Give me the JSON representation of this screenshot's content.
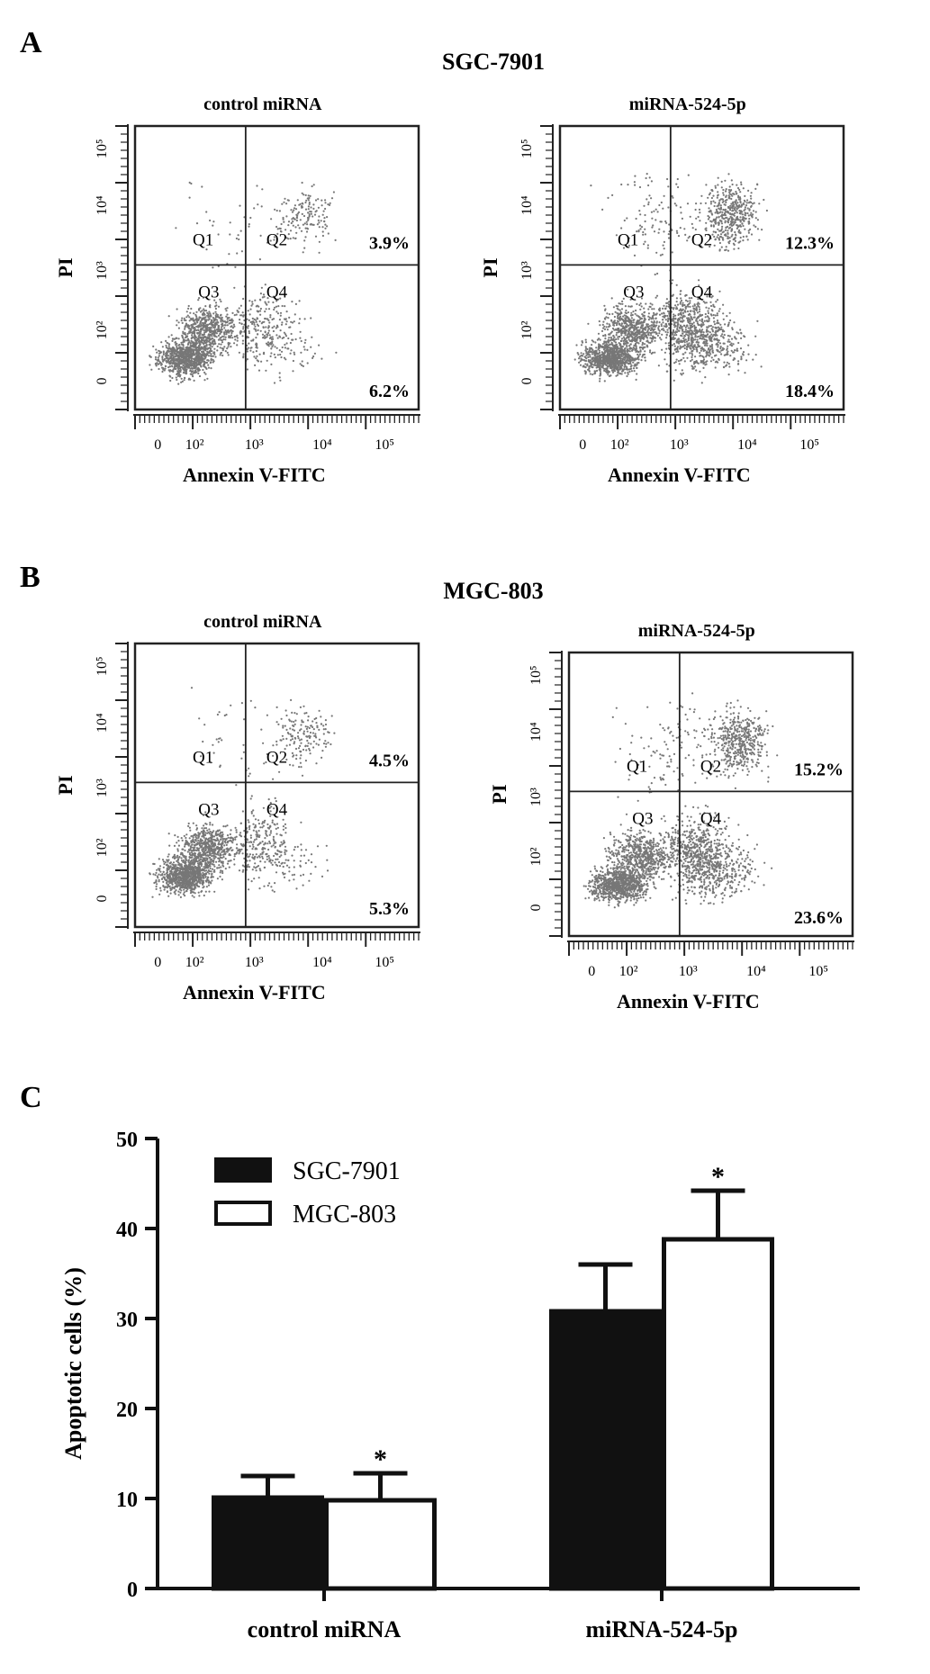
{
  "panels": [
    {
      "letter": "A",
      "cell_line": "SGC-7901",
      "plots": [
        {
          "title": "control miRNA",
          "quadrants": [
            "Q1",
            "Q2",
            "Q3",
            "Q4"
          ],
          "q2_percent": "3.9%",
          "q4_percent": "6.2%"
        },
        {
          "title": "miRNA-524-5p",
          "quadrants": [
            "Q1",
            "Q2",
            "Q3",
            "Q4"
          ],
          "q2_percent": "12.3%",
          "q4_percent": "18.4%"
        }
      ]
    },
    {
      "letter": "B",
      "cell_line": "MGC-803",
      "plots": [
        {
          "title": "control miRNA",
          "quadrants": [
            "Q1",
            "Q2",
            "Q3",
            "Q4"
          ],
          "q2_percent": "4.5%",
          "q4_percent": "5.3%"
        },
        {
          "title": "miRNA-524-5p",
          "quadrants": [
            "Q1",
            "Q2",
            "Q3",
            "Q4"
          ],
          "q2_percent": "15.2%",
          "q4_percent": "23.6%"
        }
      ]
    }
  ],
  "flow_axes": {
    "xlabel": "Annexin V-FITC",
    "ylabel": "PI",
    "x_ticks": [
      "0",
      "10²",
      "10³",
      "10⁴",
      "10⁵"
    ],
    "y_ticks": [
      "0",
      "10²",
      "10³",
      "10⁴",
      "10⁵"
    ]
  },
  "panel_c_letter": "C",
  "chart_data": {
    "type": "bar",
    "categories": [
      "control miRNA",
      "miRNA-524-5p"
    ],
    "series": [
      {
        "name": "SGC-7901",
        "values": [
          10.1,
          30.8
        ],
        "errors": [
          2.4,
          5.2
        ],
        "fill": "#111111"
      },
      {
        "name": "MGC-803",
        "values": [
          9.8,
          38.8
        ],
        "errors": [
          3.0,
          5.4
        ],
        "fill": "#ffffff"
      }
    ],
    "significance": [
      [
        "",
        "*"
      ],
      [
        "",
        "*"
      ]
    ],
    "xlabel": "",
    "ylabel": "Apoptotic cells (%)",
    "ylim": [
      0,
      50
    ],
    "yticks": [
      "0",
      "10",
      "20",
      "30",
      "40",
      "50"
    ],
    "legend_position": "top-left"
  }
}
